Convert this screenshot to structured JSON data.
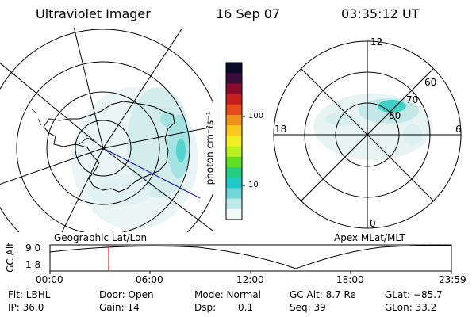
{
  "header": {
    "title": "Ultraviolet Imager",
    "date": "16 Sep 07",
    "time": "03:35:12 UT"
  },
  "left_map": {
    "label": "Geographic Lat/Lon"
  },
  "right_map": {
    "label": "Apex MLat/MLT",
    "mlt_labels": {
      "top": "12",
      "bottom": "0",
      "left": "18",
      "right": "6"
    },
    "lat_labels": [
      "60",
      "70",
      "80"
    ]
  },
  "colorbar": {
    "unit_label": "photon cm⁻²s⁻¹",
    "ticks": [
      "100",
      "10"
    ],
    "colors": [
      "#0b0b2a",
      "#3a0b3a",
      "#8a0b2a",
      "#c81e1e",
      "#e84a1e",
      "#f0901a",
      "#f8c81e",
      "#f0f020",
      "#b8f020",
      "#60e020",
      "#20d080",
      "#20c8c8",
      "#70d8d8",
      "#c0e8e8",
      "#f0f8f8"
    ]
  },
  "timeline": {
    "ylabel": "GC Alt",
    "ymax": "9.0",
    "ymin": "1.8",
    "ticks": [
      "00:00",
      "06:00",
      "12:00",
      "18:00",
      "23:59"
    ]
  },
  "info": {
    "flt": "Flt: LBHL",
    "ip": "IP: 36.0",
    "door": "Door: Open",
    "gain": "Gain: 14",
    "mode": "Mode: Normal",
    "dsp": "Dsp:",
    "dsp_val": "0.1",
    "gcalt": "GC Alt: 8.7 Re",
    "seq": "Seq: 39",
    "glat": "GLat: −85.7",
    "glon": "GLon:  33.2"
  }
}
